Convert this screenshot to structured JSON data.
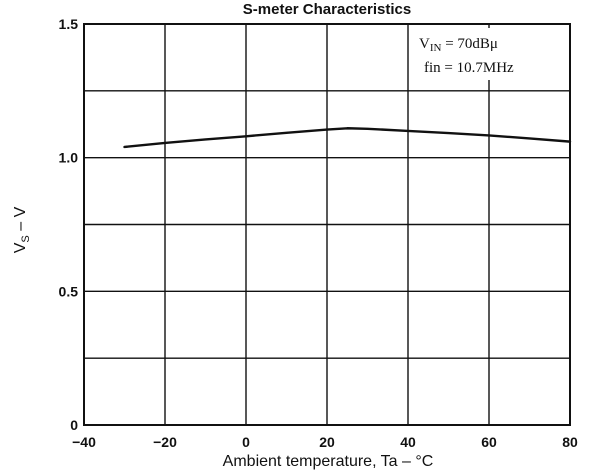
{
  "chart_data": {
    "type": "line",
    "title": "S-meter Characteristics",
    "xlabel": "Ambient temperature, Ta – °C",
    "ylabel": {
      "main": "V",
      "sub": "S",
      "rest": " – V"
    },
    "xlim": [
      -40,
      80
    ],
    "ylim": [
      0,
      1.5
    ],
    "xticks": [
      -40,
      -20,
      0,
      20,
      40,
      60,
      80
    ],
    "xtick_labels": [
      "−40",
      "−20",
      "0",
      "20",
      "40",
      "60",
      "80"
    ],
    "yticks": [
      0,
      0.5,
      1.0,
      1.5
    ],
    "ytick_labels": [
      "0",
      "0.5",
      "1.0",
      "1.5"
    ],
    "grid": true,
    "grid_x": [
      -40,
      -20,
      0,
      20,
      40,
      60,
      80
    ],
    "grid_y": [
      0,
      0.25,
      0.5,
      0.75,
      1.0,
      1.25,
      1.5
    ],
    "series": [
      {
        "x": [
          -30,
          -20,
          -10,
          0,
          10,
          20,
          25,
          30,
          40,
          50,
          60,
          70,
          80
        ],
        "values": [
          1.04,
          1.055,
          1.068,
          1.08,
          1.093,
          1.105,
          1.11,
          1.108,
          1.1,
          1.092,
          1.083,
          1.072,
          1.06
        ]
      }
    ],
    "annotations": {
      "line1_main": "V",
      "line1_sub": "IN",
      "line1_rest": " = 70dBμ",
      "line2": "fin = 10.7MHz"
    }
  }
}
